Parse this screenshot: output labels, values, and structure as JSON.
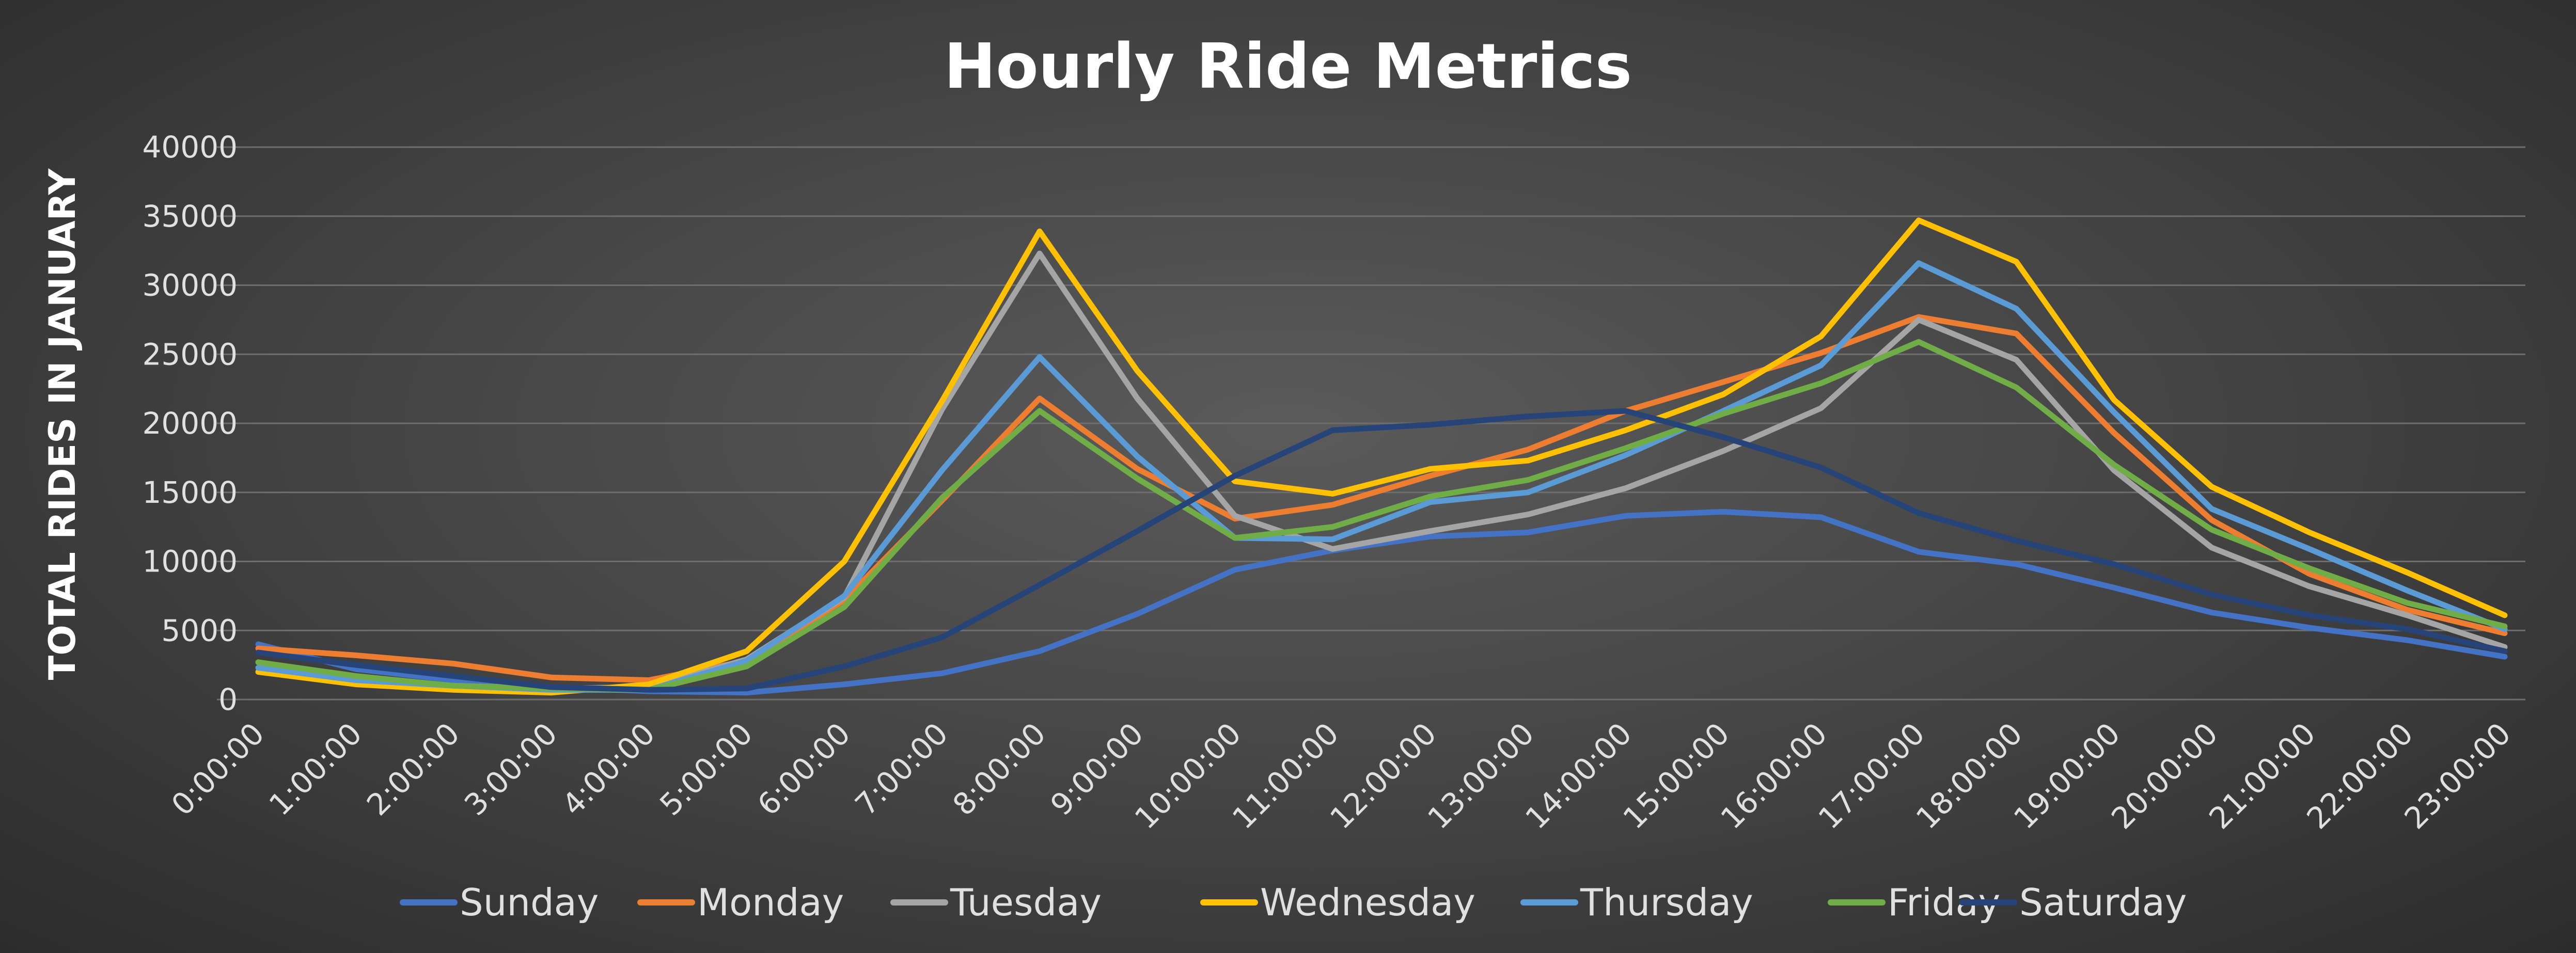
{
  "chart_data": {
    "type": "line",
    "title": "Hourly Ride Metrics",
    "xlabel": "",
    "ylabel": "TOTAL RIDES IN JANUARY",
    "ylim": [
      0,
      40000
    ],
    "yticks": [
      0,
      5000,
      10000,
      15000,
      20000,
      25000,
      30000,
      35000,
      40000
    ],
    "categories": [
      "0:00:00",
      "1:00:00",
      "2:00:00",
      "3:00:00",
      "4:00:00",
      "5:00:00",
      "6:00:00",
      "7:00:00",
      "8:00:00",
      "9:00:00",
      "10:00:00",
      "11:00:00",
      "12:00:00",
      "13:00:00",
      "14:00:00",
      "15:00:00",
      "16:00:00",
      "17:00:00",
      "18:00:00",
      "19:00:00",
      "20:00:00",
      "21:00:00",
      "22:00:00",
      "23:00:00"
    ],
    "grid": true,
    "legend": "bottom",
    "series": [
      {
        "name": "Sunday",
        "color": "#4472c4",
        "values": [
          4000,
          2200,
          1400,
          900,
          600,
          500,
          1100,
          1900,
          3500,
          6200,
          9400,
          10800,
          11800,
          12100,
          13300,
          13600,
          13200,
          10700,
          9800,
          8100,
          6300,
          5200,
          4300,
          3100
        ]
      },
      {
        "name": "Monday",
        "color": "#ed7d31",
        "values": [
          3700,
          3200,
          2600,
          1600,
          1400,
          2800,
          7200,
          14400,
          21800,
          16700,
          13100,
          14100,
          16200,
          18100,
          20900,
          23000,
          25100,
          27700,
          26500,
          19300,
          13000,
          9100,
          6500,
          4800
        ]
      },
      {
        "name": "Tuesday",
        "color": "#a5a5a5",
        "values": [
          2700,
          1500,
          1000,
          800,
          900,
          2900,
          7400,
          21000,
          32300,
          21800,
          13300,
          10900,
          12200,
          13400,
          15300,
          18000,
          21100,
          27500,
          24600,
          16600,
          11000,
          8200,
          6100,
          3800
        ]
      },
      {
        "name": "Wednesday",
        "color": "#ffc000",
        "values": [
          2000,
          1100,
          700,
          500,
          1100,
          3500,
          10000,
          21600,
          33900,
          23800,
          15800,
          14900,
          16700,
          17300,
          19500,
          22100,
          26300,
          34700,
          31700,
          21700,
          15400,
          12100,
          9200,
          6100
        ]
      },
      {
        "name": "Thursday",
        "color": "#5b9bd5",
        "values": [
          2300,
          1400,
          1000,
          700,
          700,
          2800,
          7500,
          16600,
          24800,
          17600,
          11700,
          11600,
          14300,
          15000,
          17700,
          20900,
          24200,
          31600,
          28300,
          20800,
          13800,
          10900,
          7900,
          5100
        ]
      },
      {
        "name": "Friday",
        "color": "#70ad47",
        "values": [
          2700,
          1700,
          1000,
          800,
          700,
          2400,
          6700,
          14600,
          20900,
          16000,
          11700,
          12500,
          14700,
          15900,
          18200,
          20700,
          22900,
          25900,
          22600,
          17000,
          12300,
          9500,
          7000,
          5300
        ]
      },
      {
        "name": "Saturday",
        "color": "#264478",
        "values": [
          3400,
          2500,
          1700,
          900,
          700,
          800,
          2400,
          4500,
          8300,
          12200,
          16200,
          19500,
          19900,
          20500,
          20900,
          19000,
          16800,
          13500,
          11500,
          9800,
          7600,
          6100,
          5100,
          3500
        ]
      }
    ]
  }
}
